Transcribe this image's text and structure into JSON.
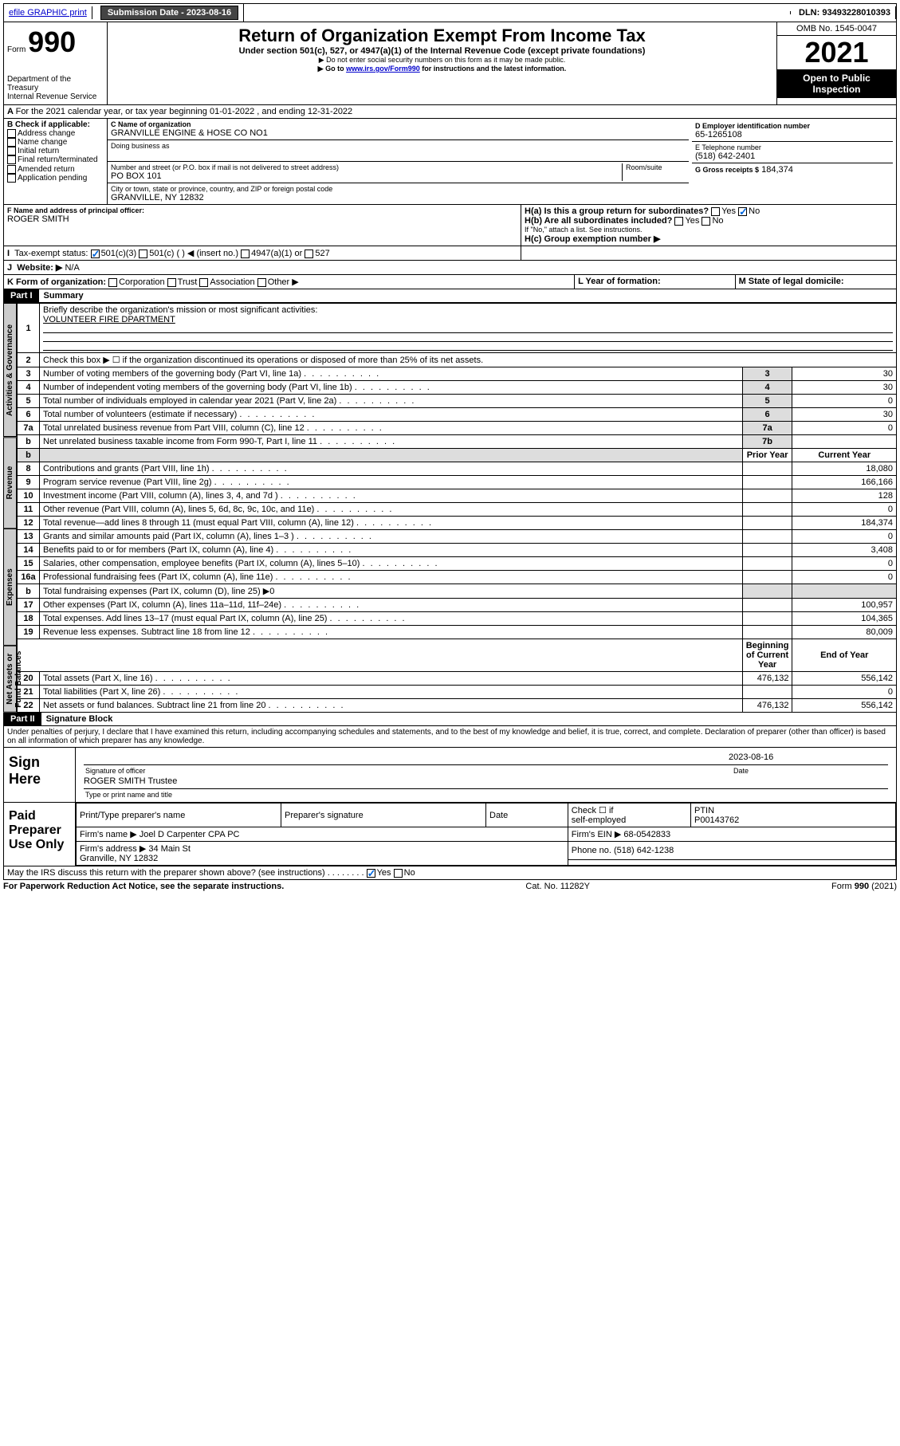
{
  "topbar": {
    "efile": "efile GRAPHIC print",
    "subm_label": "Submission Date - 2023-08-16",
    "dln_label": "DLN: 93493228010393"
  },
  "header": {
    "form_label": "Form",
    "form_num": "990",
    "dept": "Department of the Treasury",
    "irs": "Internal Revenue Service",
    "title": "Return of Organization Exempt From Income Tax",
    "sub1": "Under section 501(c), 527, or 4947(a)(1) of the Internal Revenue Code (except private foundations)",
    "sub2": "▶ Do not enter social security numbers on this form as it may be made public.",
    "sub3_pre": "▶ Go to ",
    "sub3_link": "www.irs.gov/Form990",
    "sub3_post": " for instructions and the latest information.",
    "omb": "OMB No. 1545-0047",
    "year": "2021",
    "inspect": "Open to Public Inspection"
  },
  "A": {
    "text": "For the 2021 calendar year, or tax year beginning 01-01-2022  , and ending 12-31-2022"
  },
  "B": {
    "label": "B Check if applicable:",
    "opts": [
      "Address change",
      "Name change",
      "Initial return",
      "Final return/terminated",
      "Amended return",
      "Application pending"
    ]
  },
  "C": {
    "label": "C Name of organization",
    "name": "GRANVILLE ENGINE & HOSE CO NO1",
    "dba": "Doing business as",
    "street_label": "Number and street (or P.O. box if mail is not delivered to street address)",
    "room": "Room/suite",
    "street": "PO BOX 101",
    "city_label": "City or town, state or province, country, and ZIP or foreign postal code",
    "city": "GRANVILLE, NY  12832"
  },
  "D": {
    "label": "D Employer identification number",
    "val": "65-1265108"
  },
  "E": {
    "label": "E Telephone number",
    "val": "(518) 642-2401"
  },
  "G": {
    "label": "G Gross receipts $",
    "val": "184,374"
  },
  "F": {
    "label": "F  Name and address of principal officer:",
    "val": "ROGER SMITH"
  },
  "H": {
    "a_label": "H(a)  Is this a group return for subordinates?",
    "b_label": "H(b)  Are all subordinates included?",
    "no_attach": "If \"No,\" attach a list. See instructions.",
    "c_label": "H(c)  Group exemption number ▶",
    "yes": "Yes",
    "no": "No"
  },
  "I": {
    "label": "Tax-exempt status:",
    "o1": "501(c)(3)",
    "o2": "501(c) (  ) ◀ (insert no.)",
    "o3": "4947(a)(1) or",
    "o4": "527"
  },
  "J": {
    "label": "Website: ▶",
    "val": "N/A"
  },
  "K": {
    "label": "K Form of organization:",
    "o1": "Corporation",
    "o2": "Trust",
    "o3": "Association",
    "o4": "Other ▶"
  },
  "L": {
    "label": "L Year of formation:"
  },
  "M": {
    "label": "M State of legal domicile:"
  },
  "part1": {
    "hdr": "Part I",
    "title": "Summary",
    "l1": "Briefly describe the organization's mission or most significant activities:",
    "l1v": "VOLUNTEER FIRE DPARTMENT",
    "l2": "Check this box ▶ ☐  if the organization discontinued its operations or disposed of more than 25% of its net assets.",
    "rows": [
      {
        "n": "3",
        "t": "Number of voting members of the governing body (Part VI, line 1a)",
        "k": "3",
        "v": "30"
      },
      {
        "n": "4",
        "t": "Number of independent voting members of the governing body (Part VI, line 1b)",
        "k": "4",
        "v": "30"
      },
      {
        "n": "5",
        "t": "Total number of individuals employed in calendar year 2021 (Part V, line 2a)",
        "k": "5",
        "v": "0"
      },
      {
        "n": "6",
        "t": "Total number of volunteers (estimate if necessary)",
        "k": "6",
        "v": "30"
      },
      {
        "n": "7a",
        "t": "Total unrelated business revenue from Part VIII, column (C), line 12",
        "k": "7a",
        "v": "0"
      },
      {
        "n": "b",
        "t": "Net unrelated business taxable income from Form 990-T, Part I, line 11",
        "k": "7b",
        "v": ""
      }
    ],
    "col_prior": "Prior Year",
    "col_cur": "Current Year",
    "rev": [
      {
        "n": "8",
        "t": "Contributions and grants (Part VIII, line 1h)",
        "p": "",
        "c": "18,080"
      },
      {
        "n": "9",
        "t": "Program service revenue (Part VIII, line 2g)",
        "p": "",
        "c": "166,166"
      },
      {
        "n": "10",
        "t": "Investment income (Part VIII, column (A), lines 3, 4, and 7d )",
        "p": "",
        "c": "128"
      },
      {
        "n": "11",
        "t": "Other revenue (Part VIII, column (A), lines 5, 6d, 8c, 9c, 10c, and 11e)",
        "p": "",
        "c": "0"
      },
      {
        "n": "12",
        "t": "Total revenue—add lines 8 through 11 (must equal Part VIII, column (A), line 12)",
        "p": "",
        "c": "184,374"
      }
    ],
    "exp": [
      {
        "n": "13",
        "t": "Grants and similar amounts paid (Part IX, column (A), lines 1–3 )",
        "p": "",
        "c": "0"
      },
      {
        "n": "14",
        "t": "Benefits paid to or for members (Part IX, column (A), line 4)",
        "p": "",
        "c": "3,408"
      },
      {
        "n": "15",
        "t": "Salaries, other compensation, employee benefits (Part IX, column (A), lines 5–10)",
        "p": "",
        "c": "0"
      },
      {
        "n": "16a",
        "t": "Professional fundraising fees (Part IX, column (A), line 11e)",
        "p": "",
        "c": "0"
      },
      {
        "n": "b",
        "t": "Total fundraising expenses (Part IX, column (D), line 25) ▶0",
        "p": "-",
        "c": "-"
      },
      {
        "n": "17",
        "t": "Other expenses (Part IX, column (A), lines 11a–11d, 11f–24e)",
        "p": "",
        "c": "100,957"
      },
      {
        "n": "18",
        "t": "Total expenses. Add lines 13–17 (must equal Part IX, column (A), line 25)",
        "p": "",
        "c": "104,365"
      },
      {
        "n": "19",
        "t": "Revenue less expenses. Subtract line 18 from line 12",
        "p": "",
        "c": "80,009"
      }
    ],
    "col_begin": "Beginning of Current Year",
    "col_end": "End of Year",
    "net": [
      {
        "n": "20",
        "t": "Total assets (Part X, line 16)",
        "p": "476,132",
        "c": "556,142"
      },
      {
        "n": "21",
        "t": "Total liabilities (Part X, line 26)",
        "p": "",
        "c": "0"
      },
      {
        "n": "22",
        "t": "Net assets or fund balances. Subtract line 21 from line 20",
        "p": "476,132",
        "c": "556,142"
      }
    ],
    "tab_gov": "Activities & Governance",
    "tab_rev": "Revenue",
    "tab_exp": "Expenses",
    "tab_net": "Net Assets or Fund Balances"
  },
  "part2": {
    "hdr": "Part II",
    "title": "Signature Block",
    "decl": "Under penalties of perjury, I declare that I have examined this return, including accompanying schedules and statements, and to the best of my knowledge and belief, it is true, correct, and complete. Declaration of preparer (other than officer) is based on all information of which preparer has any knowledge."
  },
  "sign": {
    "here": "Sign Here",
    "sig_off": "Signature of officer",
    "date": "Date",
    "d_val": "2023-08-16",
    "name": "ROGER SMITH Trustee",
    "name_lbl": "Type or print name and title"
  },
  "paid": {
    "title": "Paid Preparer Use Only",
    "c1": "Print/Type preparer's name",
    "c2": "Preparer's signature",
    "c3": "Date",
    "c4a": "Check ☐ if",
    "c4b": "self-employed",
    "c5": "PTIN",
    "c5v": "P00143762",
    "firm_lbl": "Firm's name   ▶",
    "firm": "Joel D Carpenter CPA PC",
    "ein_lbl": "Firm's EIN ▶",
    "ein": "68-0542833",
    "addr_lbl": "Firm's address ▶",
    "addr1": "34 Main St",
    "addr2": "Granville, NY  12832",
    "ph_lbl": "Phone no.",
    "ph": "(518) 642-1238"
  },
  "footer": {
    "q": "May the IRS discuss this return with the preparer shown above? (see instructions)",
    "yes": "Yes",
    "no": "No",
    "pra": "For Paperwork Reduction Act Notice, see the separate instructions.",
    "cat": "Cat. No. 11282Y",
    "form": "Form 990 (2021)"
  }
}
